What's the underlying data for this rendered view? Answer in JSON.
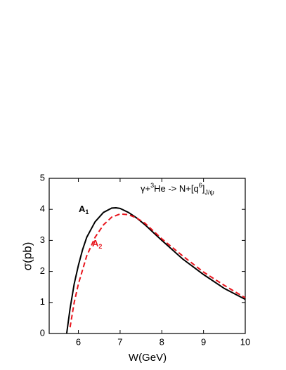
{
  "chart_data": {
    "type": "line",
    "xlabel": "W(GeV)",
    "ylabel": "σ(pb)",
    "annotation": [
      "γ+",
      "3",
      "He -> N+[q",
      "6",
      "]",
      "J/ψ"
    ],
    "xlim": [
      5.3,
      10
    ],
    "xticks": [
      6,
      7,
      8,
      9,
      10
    ],
    "ylim": [
      0,
      5
    ],
    "yticks": [
      0,
      1,
      2,
      3,
      4,
      5
    ],
    "series": [
      {
        "name": "A",
        "subscript": "1",
        "color": "#000000",
        "dash": false,
        "x": [
          5.72,
          5.8,
          5.9,
          6.0,
          6.1,
          6.2,
          6.4,
          6.6,
          6.8,
          6.9,
          7.0,
          7.2,
          7.4,
          7.6,
          7.8,
          8.0,
          8.5,
          9.0,
          9.5,
          10
        ],
        "values": [
          0,
          0.8,
          1.6,
          2.2,
          2.7,
          3.1,
          3.6,
          3.9,
          4.04,
          4.05,
          4.03,
          3.9,
          3.72,
          3.5,
          3.25,
          3.0,
          2.4,
          1.9,
          1.45,
          1.1
        ]
      },
      {
        "name": "A",
        "subscript": "2",
        "color": "#e8141c",
        "dash": true,
        "x": [
          5.8,
          5.9,
          6.0,
          6.2,
          6.4,
          6.6,
          6.8,
          7.0,
          7.2,
          7.4,
          7.6,
          7.8,
          8.0,
          8.5,
          9.0,
          9.5,
          10
        ],
        "values": [
          0.2,
          1.0,
          1.6,
          2.5,
          3.1,
          3.5,
          3.75,
          3.85,
          3.83,
          3.72,
          3.55,
          3.3,
          3.05,
          2.5,
          1.98,
          1.55,
          1.15
        ]
      }
    ]
  }
}
